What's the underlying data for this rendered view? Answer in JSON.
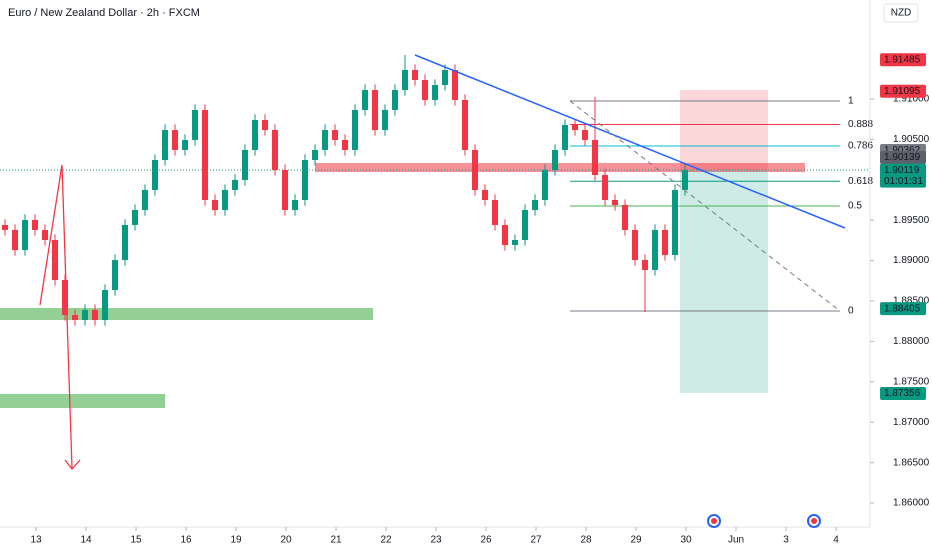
{
  "chart_data": {
    "type": "candlestick",
    "title": "Euro / New Zealand Dollar · 2h · FXCM",
    "currency": "NZD",
    "up_color": "#089981",
    "down_color": "#f23645",
    "grid": false,
    "xlim": [
      -0.5,
      86.5
    ],
    "ylim": [
      1.85728,
      1.92225
    ],
    "yticks": [
      {
        "value": 1.91,
        "label": "1.91000"
      },
      {
        "value": 1.905,
        "label": "1.90500"
      },
      {
        "value": 1.895,
        "label": "1.89500"
      },
      {
        "value": 1.89,
        "label": "1.89000"
      },
      {
        "value": 1.885,
        "label": "1.88500"
      },
      {
        "value": 1.88,
        "label": "1.88000"
      },
      {
        "value": 1.875,
        "label": "1.87500"
      },
      {
        "value": 1.87,
        "label": "1.87000"
      },
      {
        "value": 1.865,
        "label": "1.86500"
      },
      {
        "value": 1.86,
        "label": "1.86000"
      }
    ],
    "xticks": [
      {
        "value": 3.1,
        "label": "13"
      },
      {
        "value": 8.1,
        "label": "14"
      },
      {
        "value": 13.1,
        "label": "15"
      },
      {
        "value": 18.1,
        "label": "16"
      },
      {
        "value": 23.1,
        "label": "19"
      },
      {
        "value": 28.1,
        "label": "20"
      },
      {
        "value": 33.1,
        "label": "21"
      },
      {
        "value": 38.1,
        "label": "22"
      },
      {
        "value": 43.1,
        "label": "23"
      },
      {
        "value": 48.1,
        "label": "26"
      },
      {
        "value": 53.1,
        "label": "27"
      },
      {
        "value": 58.1,
        "label": "28"
      },
      {
        "value": 63.1,
        "label": "29"
      },
      {
        "value": 68.1,
        "label": "30"
      },
      {
        "value": 73.1,
        "label": "Jun"
      },
      {
        "value": 78.1,
        "label": "3"
      },
      {
        "value": 83.1,
        "label": "4"
      }
    ],
    "candles": [
      [
        1.89441,
        1.89511,
        1.89309,
        1.89379
      ],
      [
        1.89379,
        1.89449,
        1.89061,
        1.89131
      ],
      [
        1.89131,
        1.89573,
        1.89061,
        1.89503
      ],
      [
        1.89503,
        1.89573,
        1.89309,
        1.89379
      ],
      [
        1.89379,
        1.89449,
        1.89185,
        1.89255
      ],
      [
        1.89255,
        1.89325,
        1.8869,
        1.8876
      ],
      [
        1.8876,
        1.8883,
        1.88257,
        1.88327
      ],
      [
        1.88327,
        1.88397,
        1.88195,
        1.88265
      ],
      [
        1.88265,
        1.88459,
        1.88195,
        1.88389
      ],
      [
        1.88389,
        1.88459,
        1.88195,
        1.88265
      ],
      [
        1.88265,
        1.88706,
        1.88195,
        1.88636
      ],
      [
        1.88636,
        1.89077,
        1.88566,
        1.89007
      ],
      [
        1.89007,
        1.89511,
        1.88937,
        1.89441
      ],
      [
        1.89441,
        1.89696,
        1.89371,
        1.89626
      ],
      [
        1.89626,
        1.89944,
        1.89556,
        1.89874
      ],
      [
        1.89874,
        1.90315,
        1.89804,
        1.90245
      ],
      [
        1.90245,
        1.90686,
        1.90175,
        1.90616
      ],
      [
        1.90616,
        1.90686,
        1.90299,
        1.90369
      ],
      [
        1.90369,
        1.90563,
        1.90299,
        1.90493
      ],
      [
        1.90493,
        1.90934,
        1.90423,
        1.90864
      ],
      [
        1.90864,
        1.90934,
        1.8968,
        1.8975
      ],
      [
        1.8975,
        1.8982,
        1.89556,
        1.89626
      ],
      [
        1.89626,
        1.89944,
        1.89556,
        1.89874
      ],
      [
        1.89874,
        1.90068,
        1.89804,
        1.89998
      ],
      [
        1.89998,
        1.90439,
        1.89928,
        1.90369
      ],
      [
        1.90369,
        1.9081,
        1.90299,
        1.9074
      ],
      [
        1.9074,
        1.9081,
        1.90546,
        1.90616
      ],
      [
        1.90616,
        1.90686,
        1.90051,
        1.90121
      ],
      [
        1.90121,
        1.90191,
        1.89556,
        1.89626
      ],
      [
        1.89626,
        1.8982,
        1.89556,
        1.8975
      ],
      [
        1.8975,
        1.90315,
        1.8968,
        1.90245
      ],
      [
        1.90245,
        1.90439,
        1.90175,
        1.90369
      ],
      [
        1.90369,
        1.90686,
        1.90299,
        1.90616
      ],
      [
        1.90616,
        1.90686,
        1.90423,
        1.90493
      ],
      [
        1.90493,
        1.90563,
        1.90299,
        1.90369
      ],
      [
        1.90369,
        1.90934,
        1.90299,
        1.90864
      ],
      [
        1.90864,
        1.91181,
        1.90794,
        1.91111
      ],
      [
        1.91111,
        1.91181,
        1.90546,
        1.90616
      ],
      [
        1.90616,
        1.90934,
        1.90546,
        1.90864
      ],
      [
        1.90864,
        1.91181,
        1.90794,
        1.91111
      ],
      [
        1.91111,
        1.91545,
        1.91041,
        1.91359
      ],
      [
        1.91359,
        1.91429,
        1.91165,
        1.91235
      ],
      [
        1.91235,
        1.91305,
        1.90918,
        1.90988
      ],
      [
        1.90988,
        1.91243,
        1.90918,
        1.91173
      ],
      [
        1.91173,
        1.91429,
        1.91103,
        1.91359
      ],
      [
        1.91359,
        1.91429,
        1.90918,
        1.90988
      ],
      [
        1.90988,
        1.91058,
        1.90299,
        1.90369
      ],
      [
        1.90369,
        1.90439,
        1.89804,
        1.89874
      ],
      [
        1.89874,
        1.89944,
        1.8968,
        1.8975
      ],
      [
        1.8975,
        1.8982,
        1.89371,
        1.89441
      ],
      [
        1.89441,
        1.89511,
        1.89123,
        1.89193
      ],
      [
        1.89193,
        1.89325,
        1.89123,
        1.89255
      ],
      [
        1.89255,
        1.89696,
        1.89185,
        1.89626
      ],
      [
        1.89626,
        1.8982,
        1.89556,
        1.8975
      ],
      [
        1.8975,
        1.90191,
        1.8968,
        1.90121
      ],
      [
        1.90121,
        1.90439,
        1.90051,
        1.90369
      ],
      [
        1.90369,
        1.90748,
        1.90299,
        1.90678
      ],
      [
        1.90678,
        1.90748,
        1.90546,
        1.90616
      ],
      [
        1.90616,
        1.90686,
        1.90423,
        1.90493
      ],
      [
        1.90493,
        1.91025,
        1.89989,
        1.90059
      ],
      [
        1.90059,
        1.90129,
        1.8968,
        1.8975
      ],
      [
        1.8975,
        1.8982,
        1.89618,
        1.89688
      ],
      [
        1.89688,
        1.89758,
        1.89309,
        1.89379
      ],
      [
        1.89379,
        1.89449,
        1.88937,
        1.89007
      ],
      [
        1.89007,
        1.89077,
        1.88364,
        1.88884
      ],
      [
        1.88884,
        1.89449,
        1.88814,
        1.89379
      ],
      [
        1.89379,
        1.89449,
        1.88999,
        1.89069
      ],
      [
        1.89069,
        1.89944,
        1.88999,
        1.89874
      ],
      [
        1.89874,
        1.90189,
        1.89804,
        1.90119
      ]
    ],
    "fib": {
      "high": 1.90975,
      "low": 1.88376,
      "xrange": [
        56.5,
        83.5
      ],
      "levels": [
        1,
        0.888,
        0.786,
        0.618,
        0.5,
        0
      ],
      "colors": [
        "#787b86",
        "#f23645",
        "#00bcd4",
        "#089981",
        "#4caf50",
        "#787b86"
      ]
    },
    "price_labels": [
      {
        "value": 1.91485,
        "color": "#f23645"
      },
      {
        "value": 1.91095,
        "color": "#f23645"
      },
      {
        "value": 1.90362,
        "color": "#787b86"
      },
      {
        "value": 1.90139,
        "color": "#5d606b"
      },
      {
        "value": 1.90119,
        "color": "#089981",
        "countdown": "01:01:31"
      },
      {
        "value": 1.88405,
        "color": "#089981"
      },
      {
        "value": 1.87356,
        "color": "#089981"
      }
    ]
  }
}
